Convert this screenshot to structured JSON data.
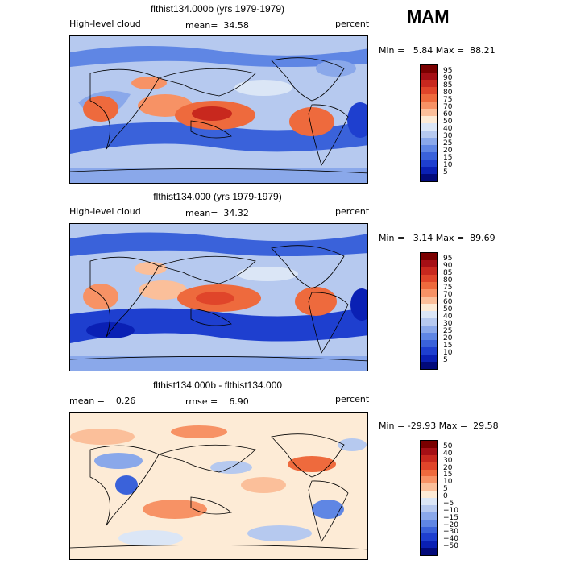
{
  "season": "MAM",
  "panels": [
    {
      "title": "flthist134.000b (yrs 1979-1979)",
      "left_label": "High-level cloud",
      "center_label": "mean=  34.58",
      "right_label": "percent",
      "minmax": "Min =   5.84 Max =  88.21",
      "kind": "abs"
    },
    {
      "title": "flthist134.000 (yrs 1979-1979)",
      "left_label": "High-level cloud",
      "center_label": "mean=  34.32",
      "right_label": "percent",
      "minmax": "Min =   3.14 Max =  89.69",
      "kind": "abs"
    },
    {
      "title": "flthist134.000b - flthist134.000",
      "left_label": "mean =    0.26",
      "center_label": "rmse =    6.90",
      "right_label": "percent",
      "minmax": "Min = -29.93 Max =  29.58",
      "kind": "diff"
    }
  ],
  "colorbars": {
    "abs": {
      "labels": [
        "95",
        "90",
        "85",
        "80",
        "75",
        "70",
        "60",
        "50",
        "40",
        "30",
        "25",
        "20",
        "15",
        "10",
        "5"
      ],
      "colors": [
        "#7a0000",
        "#a50f15",
        "#c8281e",
        "#e0452a",
        "#ee6a3d",
        "#f79265",
        "#fbbf9a",
        "#fdebd6",
        "#dbe6f6",
        "#b6c9ef",
        "#8aa8ea",
        "#5f86e4",
        "#3a62da",
        "#1e3fcf",
        "#0a20b4",
        "#020a7a"
      ]
    },
    "diff": {
      "labels": [
        "50",
        "40",
        "30",
        "20",
        "15",
        "10",
        "5",
        "0",
        "−5",
        "−10",
        "−15",
        "−20",
        "−30",
        "−40",
        "−50"
      ],
      "colors": [
        "#7a0000",
        "#a50f15",
        "#c8281e",
        "#e0452a",
        "#ee6a3d",
        "#f79265",
        "#fbbf9a",
        "#fdebd6",
        "#dbe6f6",
        "#b6c9ef",
        "#8aa8ea",
        "#5f86e4",
        "#3a62da",
        "#1e3fcf",
        "#0a20b4",
        "#020a7a"
      ]
    }
  }
}
